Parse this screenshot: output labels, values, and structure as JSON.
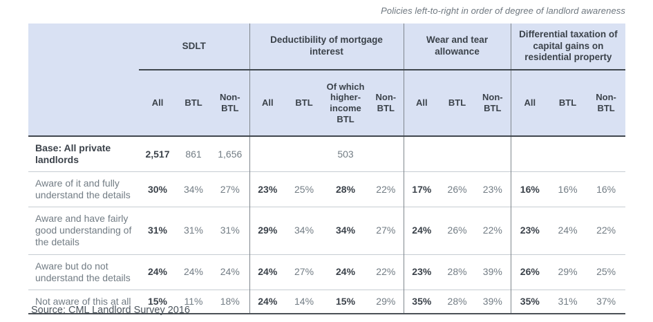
{
  "caption": "Policies left-to-right in order of degree of landlord awareness",
  "source": "Source: CML Landlord Survey 2016",
  "colors": {
    "header_bg": "#d9e1f3",
    "text_dark": "#3b424a",
    "text_gray": "#727c84",
    "border_dark": "#3f464d",
    "border_gray": "#7f868c",
    "row_line": "#c6ccd2"
  },
  "chart_data": {
    "type": "table",
    "title": "Policies left-to-right in order of degree of landlord awareness",
    "column_groups": [
      {
        "label": "SDLT",
        "cols": [
          "All",
          "BTL",
          "Non-BTL"
        ]
      },
      {
        "label": "Deductibility of mortgage interest",
        "cols": [
          "All",
          "BTL",
          "Of which higher-income BTL",
          "Non-BTL"
        ]
      },
      {
        "label": "Wear and tear allowance",
        "cols": [
          "All",
          "BTL",
          "Non-BTL"
        ]
      },
      {
        "label": "Differential taxation of capital gains on residential property",
        "cols": [
          "All",
          "BTL",
          "Non-BTL"
        ]
      }
    ],
    "rows": [
      {
        "label": "Base: All private landlords",
        "label_bold": true,
        "cells": [
          {
            "v": "2,517",
            "b": true
          },
          {
            "v": "861"
          },
          {
            "v": "1,656"
          },
          {
            "v": ""
          },
          {
            "v": ""
          },
          {
            "v": "503"
          },
          {
            "v": ""
          },
          {
            "v": ""
          },
          {
            "v": ""
          },
          {
            "v": ""
          },
          {
            "v": ""
          },
          {
            "v": ""
          },
          {
            "v": ""
          }
        ]
      },
      {
        "label": "Aware of it and fully understand the details",
        "label_bold": false,
        "cells": [
          {
            "v": "30%",
            "b": true
          },
          {
            "v": "34%"
          },
          {
            "v": "27%"
          },
          {
            "v": "23%",
            "b": true
          },
          {
            "v": "25%"
          },
          {
            "v": "28%",
            "b": true
          },
          {
            "v": "22%"
          },
          {
            "v": "17%",
            "b": true
          },
          {
            "v": "26%"
          },
          {
            "v": "23%"
          },
          {
            "v": "16%",
            "b": true
          },
          {
            "v": "16%"
          },
          {
            "v": "16%"
          }
        ]
      },
      {
        "label": "Aware and have fairly good understanding of the details",
        "label_bold": false,
        "cells": [
          {
            "v": "31%",
            "b": true
          },
          {
            "v": "31%"
          },
          {
            "v": "31%"
          },
          {
            "v": "29%",
            "b": true
          },
          {
            "v": "34%"
          },
          {
            "v": "34%",
            "b": true
          },
          {
            "v": "27%"
          },
          {
            "v": "24%",
            "b": true
          },
          {
            "v": "26%"
          },
          {
            "v": "22%"
          },
          {
            "v": "23%",
            "b": true
          },
          {
            "v": "24%"
          },
          {
            "v": "22%"
          }
        ]
      },
      {
        "label": "Aware but do not understand the details",
        "label_bold": false,
        "cells": [
          {
            "v": "24%",
            "b": true
          },
          {
            "v": "24%"
          },
          {
            "v": "24%"
          },
          {
            "v": "24%",
            "b": true
          },
          {
            "v": "27%"
          },
          {
            "v": "24%",
            "b": true
          },
          {
            "v": "22%"
          },
          {
            "v": "23%",
            "b": true
          },
          {
            "v": "28%"
          },
          {
            "v": "39%"
          },
          {
            "v": "26%",
            "b": true
          },
          {
            "v": "29%"
          },
          {
            "v": "25%"
          }
        ]
      },
      {
        "label": "Not aware of this at all",
        "label_bold": false,
        "cells": [
          {
            "v": "15%",
            "b": true
          },
          {
            "v": "11%"
          },
          {
            "v": "18%"
          },
          {
            "v": "24%",
            "b": true
          },
          {
            "v": "14%"
          },
          {
            "v": "15%",
            "b": true
          },
          {
            "v": "29%"
          },
          {
            "v": "35%",
            "b": true
          },
          {
            "v": "28%"
          },
          {
            "v": "39%"
          },
          {
            "v": "35%",
            "b": true
          },
          {
            "v": "31%"
          },
          {
            "v": "37%"
          }
        ]
      }
    ]
  }
}
